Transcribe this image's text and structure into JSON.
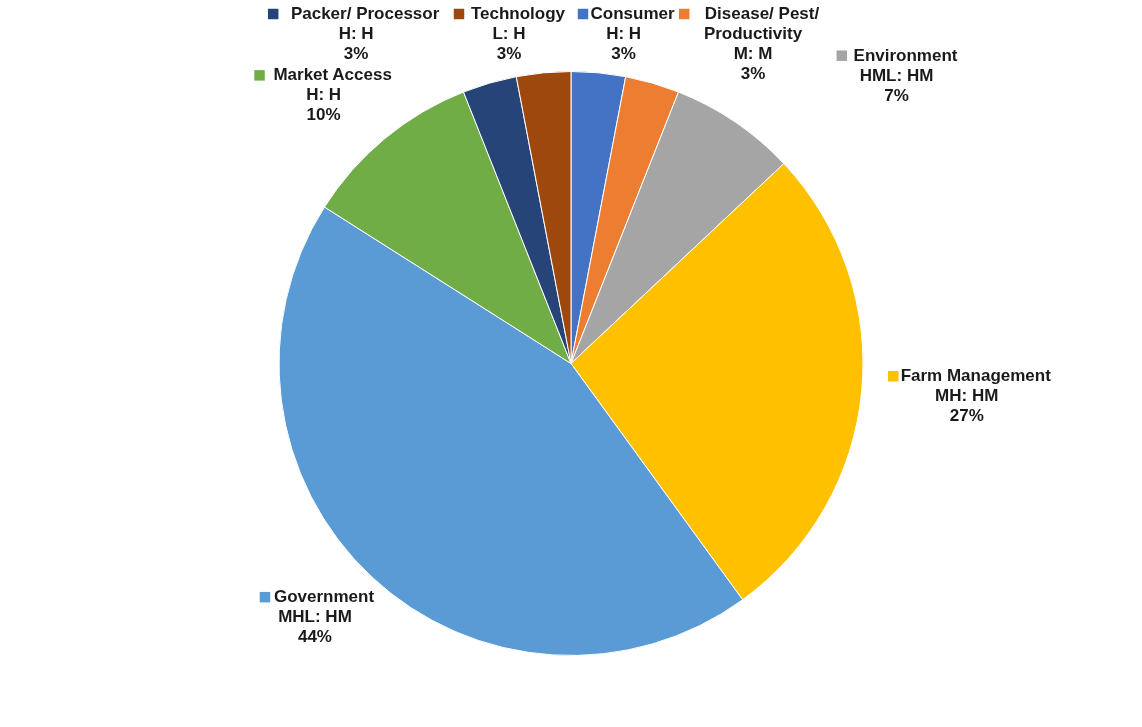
{
  "chart_data": {
    "type": "pie",
    "legend": "top",
    "categories": [
      "Consumer",
      "Disease/ Pest/ Productivity",
      "Environment",
      "Farm Management",
      "Government",
      "Market Access",
      "Packer/ Processor",
      "Technology"
    ],
    "values": [
      3,
      3,
      7,
      27,
      44,
      10,
      3,
      3
    ],
    "value_labels": [
      "H: H 3%",
      "M: M 3%",
      "HML: HM 7%",
      "MH: HM 27%",
      "MHL: HM 44%",
      "H: H 10%",
      "H: H 3%",
      "L: H 3%"
    ],
    "colors": [
      "#4472c4",
      "#ed7d31",
      "#a5a5a5",
      "#ffc000",
      "#5b9bd5",
      "#70ad47",
      "#264478",
      "#9e480e"
    ]
  }
}
